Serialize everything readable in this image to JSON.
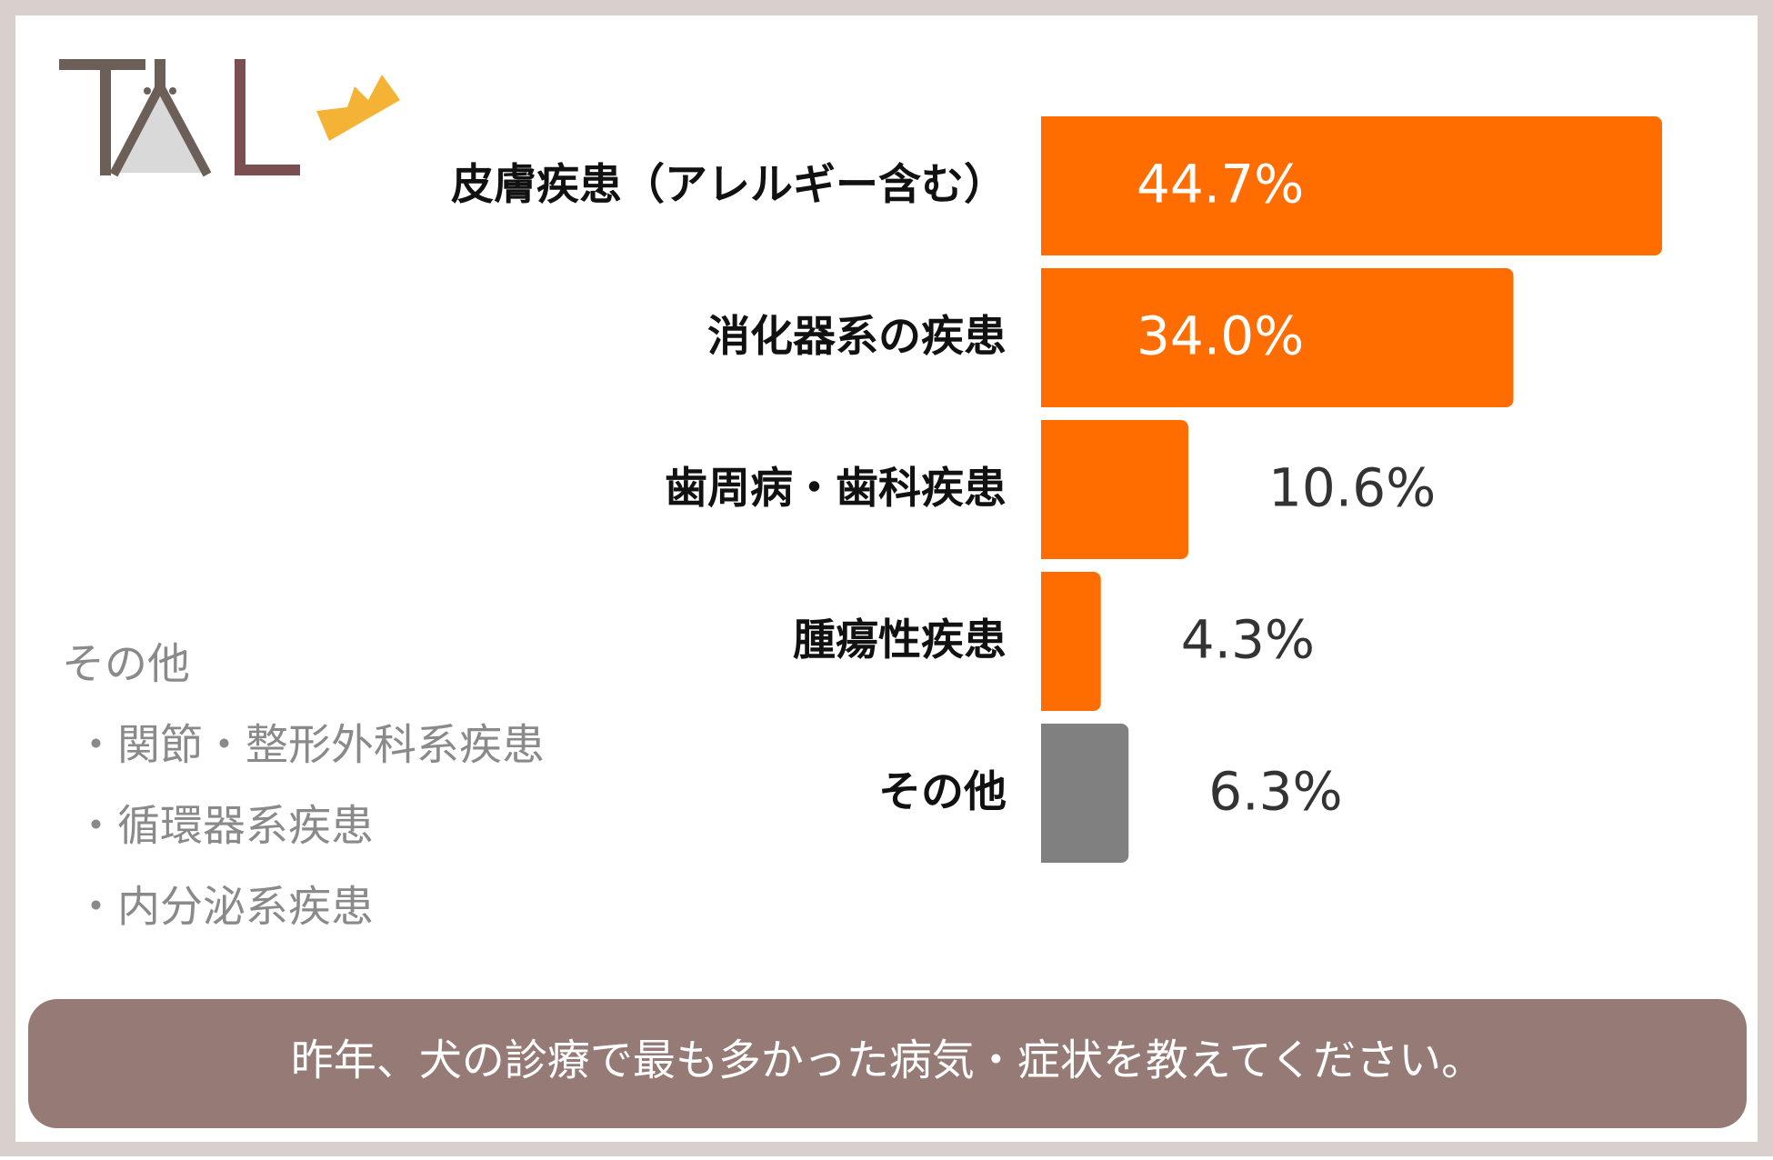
{
  "chart_data": {
    "type": "bar",
    "orientation": "horizontal",
    "categories": [
      "皮膚疾患（アレルギー含む）",
      "消化器系の疾患",
      "歯周病・歯科疾患",
      "腫瘍性疾患",
      "その他"
    ],
    "values": [
      44.7,
      34.0,
      10.6,
      4.3,
      6.3
    ],
    "value_labels": [
      "44.7%",
      "34.0%",
      "10.6%",
      "4.3%",
      "6.3%"
    ],
    "colors": [
      "#ff6d00",
      "#ff6d00",
      "#ff6d00",
      "#ff6d00",
      "#808080"
    ]
  },
  "note": {
    "title": "その他",
    "items": [
      "・関節・整形外科系疾患",
      "・循環器系疾患",
      "・内分泌系疾患"
    ]
  },
  "banner": "昨年、犬の診療で最も多かった病気・症状を教えてください。"
}
